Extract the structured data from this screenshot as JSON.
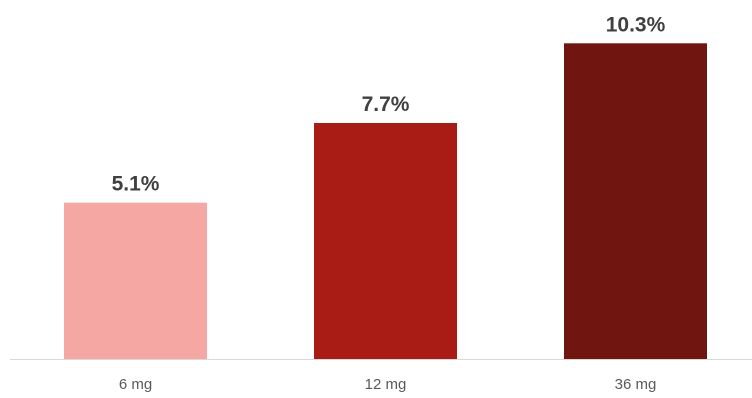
{
  "chart_data": {
    "type": "bar",
    "categories": [
      "6 mg",
      "12 mg",
      "36 mg"
    ],
    "values": [
      5.1,
      7.7,
      10.3
    ],
    "value_labels": [
      "5.1%",
      "7.7%",
      "10.3%"
    ],
    "unit": "%",
    "title": "",
    "xlabel": "",
    "ylabel": "",
    "ylim": [
      0,
      11
    ],
    "grid": false,
    "legend": "none",
    "bar_colors": [
      "#f4a7a3",
      "#a81c15",
      "#701510"
    ],
    "axis_color": "#d9d9d9",
    "label_color": "#404040",
    "tick_color": "#595959"
  }
}
